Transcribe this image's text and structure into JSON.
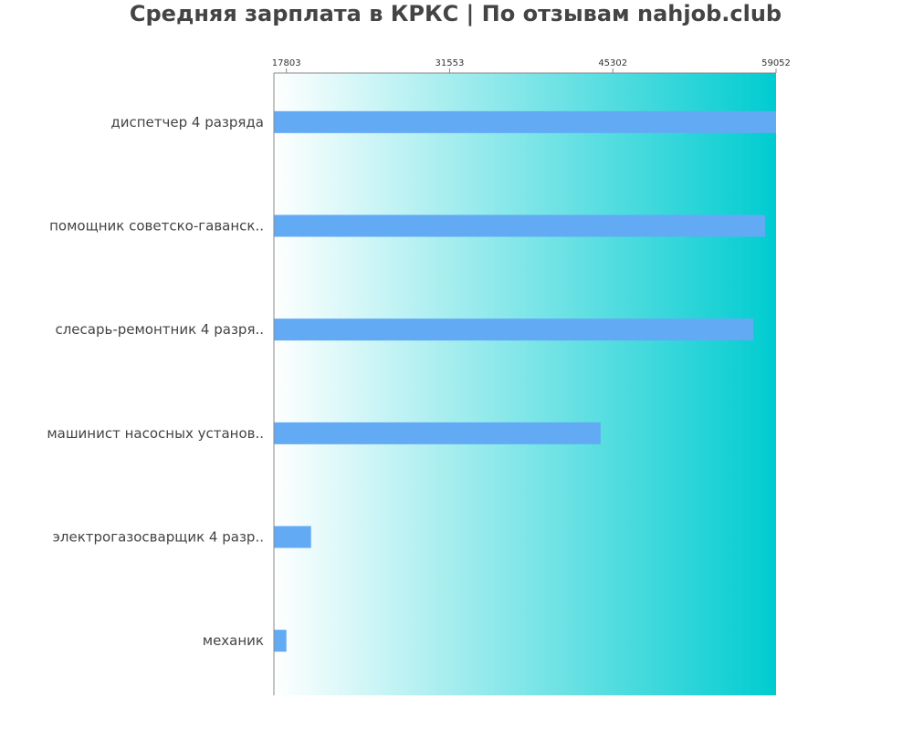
{
  "chart_data": {
    "type": "bar",
    "orientation": "horizontal",
    "title": "Средняя зарплата в КРКС | По отзывам nahjob.club",
    "categories": [
      "диспетчер 4 разряда",
      "помощник советско-гаванск..",
      "слесарь-ремонтник 4 разря..",
      "машинист насосных установ..",
      "электрогазосварщик 4 разр..",
      "механик"
    ],
    "values": [
      59052,
      58130,
      57130,
      44270,
      19880,
      17803
    ],
    "xticks": [
      17803,
      31553,
      45302,
      59052
    ],
    "xlim": [
      16750,
      59052
    ],
    "axis_position": "top",
    "grid": false,
    "colors": {
      "bar": "#63aaf5",
      "background_start": "#ffffff",
      "background_end": "#00ccd0",
      "title": "#444444"
    }
  }
}
